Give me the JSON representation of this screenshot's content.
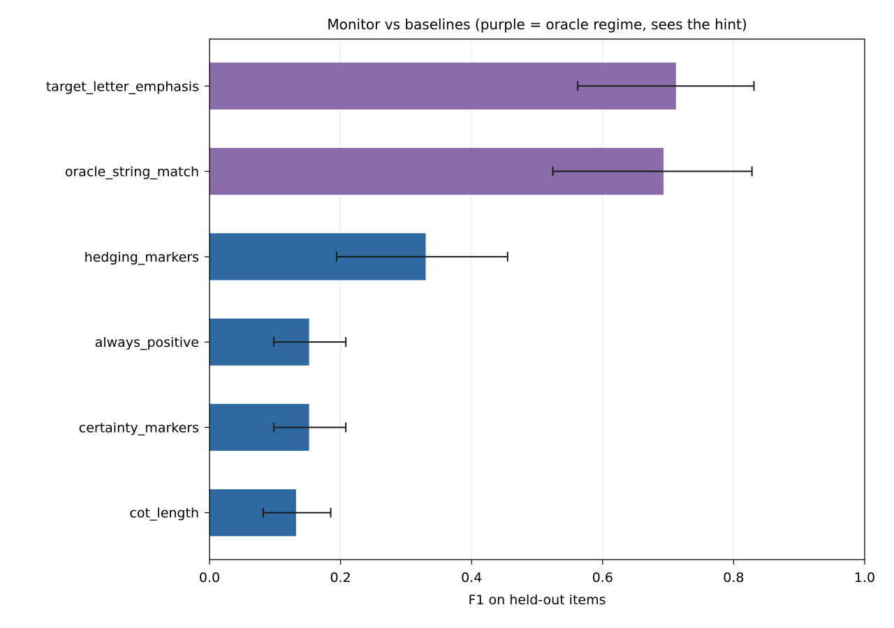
{
  "chart_data": {
    "type": "bar",
    "orientation": "horizontal",
    "title": "Monitor vs baselines (purple = oracle regime, sees the hint)",
    "xlabel": "F1 on held-out items",
    "ylabel": "",
    "xlim": [
      0,
      1.0
    ],
    "xticks": [
      "0.0",
      "0.2",
      "0.4",
      "0.6",
      "0.8",
      "1.0"
    ],
    "xtick_values": [
      0,
      0.2,
      0.4,
      0.6,
      0.8,
      1.0
    ],
    "grid": "vertical",
    "colors": {
      "oracle": "#8a6cab",
      "baseline": "#2e6a9f",
      "errorbar": "#1a1a1a",
      "grid": "#e6e6e6"
    },
    "categories": [
      "target_letter_emphasis",
      "oracle_string_match",
      "hedging_markers",
      "always_positive",
      "certainty_markers",
      "cot_length"
    ],
    "values": [
      0.712,
      0.693,
      0.33,
      0.152,
      0.152,
      0.132
    ],
    "error_low": [
      0.562,
      0.524,
      0.194,
      0.098,
      0.098,
      0.082
    ],
    "error_high": [
      0.831,
      0.828,
      0.455,
      0.208,
      0.208,
      0.185
    ],
    "regime": [
      "oracle",
      "oracle",
      "baseline",
      "baseline",
      "baseline",
      "baseline"
    ]
  }
}
